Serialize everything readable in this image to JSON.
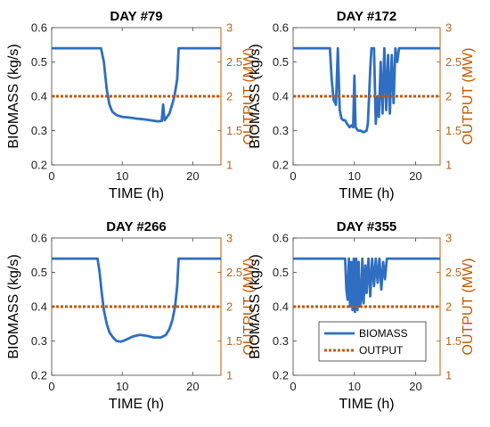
{
  "colors": {
    "biomass": "#2f6ec0",
    "output": "#c45a00",
    "right_axis": "#c05a00"
  },
  "chart_data": [
    {
      "type": "line",
      "title": "DAY #79",
      "xlabel": "TIME (h)",
      "ylabel": "BIOMASS (kg/s)",
      "ylabel_right": "OUTPUT (MW)",
      "xlim": [
        0,
        24
      ],
      "ylim": [
        0.2,
        0.6
      ],
      "ylim_right": [
        1,
        3
      ],
      "xticks": [
        "0",
        "10",
        "20"
      ],
      "yticks": [
        "0.2",
        "0.3",
        "0.4",
        "0.5",
        "0.6"
      ],
      "yticks_right": [
        "1",
        "1.5",
        "2",
        "2.5",
        "3"
      ],
      "series": [
        {
          "axis": "left",
          "x": [
            0,
            7.0,
            7.4,
            7.8,
            8.2,
            8.6,
            9.2,
            10,
            11,
            12,
            13,
            14,
            15,
            15.6,
            15.8,
            16.0,
            16.3,
            16.7,
            17.0,
            17.4,
            17.8,
            18.0,
            24
          ],
          "y": [
            0.54,
            0.54,
            0.5,
            0.42,
            0.375,
            0.355,
            0.345,
            0.34,
            0.338,
            0.335,
            0.333,
            0.33,
            0.327,
            0.328,
            0.376,
            0.33,
            0.338,
            0.35,
            0.37,
            0.4,
            0.45,
            0.54,
            0.54
          ]
        },
        {
          "axis": "right",
          "x": [
            0,
            24
          ],
          "y": [
            2,
            2
          ]
        }
      ]
    },
    {
      "type": "line",
      "title": "DAY #172",
      "xlabel": "TIME (h)",
      "ylabel": "BIOMASS (kg/s)",
      "ylabel_right": "OUTPUT (MW)",
      "xlim": [
        0,
        24
      ],
      "ylim": [
        0.2,
        0.6
      ],
      "ylim_right": [
        1,
        3
      ],
      "xticks": [
        "0",
        "10",
        "20"
      ],
      "yticks": [
        "0.2",
        "0.3",
        "0.4",
        "0.5",
        "0.6"
      ],
      "yticks_right": [
        "1",
        "1.5",
        "2",
        "2.5",
        "3"
      ],
      "series": [
        {
          "axis": "left",
          "x": [
            0,
            6.0,
            6.3,
            6.6,
            7.0,
            7.3,
            7.6,
            7.9,
            8.2,
            8.5,
            8.8,
            9.2,
            9.5,
            9.8,
            10.0,
            10.2,
            10.4,
            10.6,
            11.0,
            11.5,
            12.0,
            12.2,
            12.4,
            12.6,
            12.8,
            13.0,
            13.2,
            13.5,
            13.8,
            14.0,
            14.3,
            14.6,
            14.9,
            15.2,
            15.5,
            15.8,
            16.1,
            16.4,
            16.7,
            17.0,
            17.3,
            17.6,
            24
          ],
          "y": [
            0.54,
            0.54,
            0.45,
            0.39,
            0.375,
            0.54,
            0.36,
            0.335,
            0.33,
            0.33,
            0.32,
            0.31,
            0.315,
            0.31,
            0.46,
            0.31,
            0.305,
            0.3,
            0.3,
            0.295,
            0.3,
            0.32,
            0.4,
            0.48,
            0.54,
            0.54,
            0.54,
            0.32,
            0.4,
            0.34,
            0.5,
            0.35,
            0.54,
            0.36,
            0.52,
            0.35,
            0.52,
            0.38,
            0.54,
            0.5,
            0.54,
            0.54,
            0.54
          ]
        },
        {
          "axis": "right",
          "x": [
            0,
            24
          ],
          "y": [
            2,
            2
          ]
        }
      ]
    },
    {
      "type": "line",
      "title": "DAY #266",
      "xlabel": "TIME (h)",
      "ylabel": "BIOMASS (kg/s)",
      "ylabel_right": "OUTPUT (MW)",
      "xlim": [
        0,
        24
      ],
      "ylim": [
        0.2,
        0.6
      ],
      "ylim_right": [
        1,
        3
      ],
      "xticks": [
        "0",
        "10",
        "20"
      ],
      "yticks": [
        "0.2",
        "0.3",
        "0.4",
        "0.5",
        "0.6"
      ],
      "yticks_right": [
        "1",
        "1.5",
        "2",
        "2.5",
        "3"
      ],
      "series": [
        {
          "axis": "left",
          "x": [
            0,
            6.5,
            6.8,
            7.1,
            7.4,
            7.8,
            8.2,
            8.7,
            9.2,
            9.8,
            10.5,
            11.5,
            12.5,
            13.5,
            14.5,
            15.5,
            16.2,
            16.7,
            17.1,
            17.5,
            17.8,
            18.0,
            24
          ],
          "y": [
            0.54,
            0.54,
            0.5,
            0.44,
            0.39,
            0.35,
            0.325,
            0.31,
            0.3,
            0.298,
            0.303,
            0.313,
            0.318,
            0.315,
            0.31,
            0.31,
            0.318,
            0.335,
            0.36,
            0.4,
            0.46,
            0.54,
            0.54
          ]
        },
        {
          "axis": "right",
          "x": [
            0,
            24
          ],
          "y": [
            2,
            2
          ]
        }
      ]
    },
    {
      "type": "line",
      "title": "DAY #355",
      "xlabel": "TIME (h)",
      "ylabel": "BIOMASS (kg/s)",
      "ylabel_right": "OUTPUT (MW)",
      "xlim": [
        0,
        24
      ],
      "ylim": [
        0.2,
        0.6
      ],
      "ylim_right": [
        1,
        3
      ],
      "xticks": [
        "0",
        "10",
        "20"
      ],
      "yticks": [
        "0.2",
        "0.3",
        "0.4",
        "0.5",
        "0.6"
      ],
      "yticks_right": [
        "1",
        "1.5",
        "2",
        "2.5",
        "3"
      ],
      "legend": {
        "location": "bottom-right",
        "entries": [
          "BIOMASS",
          "OUTPUT"
        ]
      },
      "series": [
        {
          "axis": "left",
          "name": "BIOMASS",
          "x": [
            0,
            8.5,
            8.7,
            8.9,
            9.1,
            9.3,
            9.5,
            9.7,
            9.9,
            10.1,
            10.3,
            10.5,
            10.7,
            10.9,
            11.1,
            11.3,
            11.5,
            11.8,
            12.0,
            12.3,
            12.6,
            12.9,
            13.2,
            13.5,
            13.8,
            14.1,
            14.4,
            14.7,
            15.0,
            15.3,
            15.6,
            24
          ],
          "y": [
            0.54,
            0.54,
            0.45,
            0.42,
            0.54,
            0.4,
            0.53,
            0.39,
            0.54,
            0.385,
            0.54,
            0.39,
            0.53,
            0.4,
            0.42,
            0.54,
            0.41,
            0.52,
            0.44,
            0.54,
            0.43,
            0.54,
            0.46,
            0.54,
            0.47,
            0.54,
            0.45,
            0.53,
            0.48,
            0.54,
            0.54,
            0.54
          ]
        },
        {
          "axis": "right",
          "name": "OUTPUT",
          "x": [
            0,
            24
          ],
          "y": [
            2,
            2
          ]
        }
      ]
    }
  ]
}
